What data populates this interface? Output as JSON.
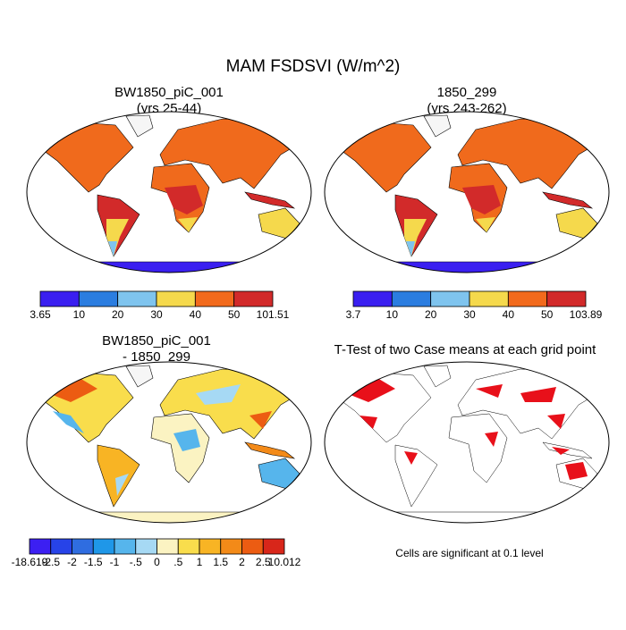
{
  "title": "MAM FSDSVI (W/m^2)",
  "panels": [
    {
      "title": "BW1850_piC_001",
      "subtitle": "(yrs 25-44)"
    },
    {
      "title": "1850_299",
      "subtitle": "(yrs 243-262)"
    },
    {
      "title": "BW1850_piC_001",
      "subtitle": "- 1850_299"
    },
    {
      "title": "T-Test of two Case means at each grid point"
    }
  ],
  "colorbars": [
    {
      "colors": [
        "#3a1ff0",
        "#2b7de0",
        "#7fc4ee",
        "#f5d94c",
        "#f26a1c",
        "#d22a2a"
      ],
      "labels": [
        "3.65",
        "10",
        "20",
        "30",
        "40",
        "50",
        "101.51"
      ]
    },
    {
      "colors": [
        "#3a1ff0",
        "#2b7de0",
        "#7fc4ee",
        "#f5d94c",
        "#f26a1c",
        "#d22a2a"
      ],
      "labels": [
        "3.7",
        "10",
        "20",
        "30",
        "40",
        "50",
        "103.89"
      ]
    },
    {
      "colors": [
        "#3c1ff2",
        "#2743e8",
        "#2f6de0",
        "#1f97e8",
        "#56b5ec",
        "#a6d9f4",
        "#fbf3c2",
        "#f9dd4c",
        "#f8b424",
        "#f38a18",
        "#ec5c12",
        "#d8261a"
      ],
      "labels": [
        "-18.619",
        "-2.5",
        "-2",
        "-1.5",
        "-1",
        "-.5",
        "0",
        ".5",
        "1",
        "1.5",
        "2",
        "2.5",
        "10.012"
      ]
    }
  ],
  "note": "Cells are significant at 0.1 level"
}
